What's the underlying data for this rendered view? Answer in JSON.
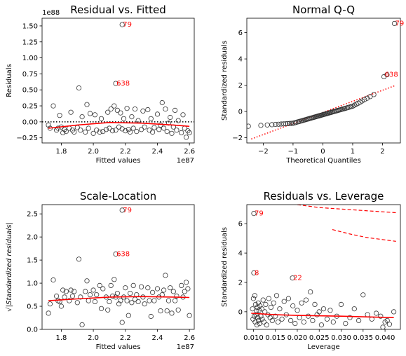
{
  "chart_data": [
    {
      "type": "scatter",
      "title": "Residual vs. Fitted",
      "xlabel": "Fitted values",
      "ylabel": "Residuals",
      "x_offset_text": "1e87",
      "y_offset_text": "1e88",
      "xlim": [
        1.68,
        2.63
      ],
      "ylim": [
        -0.33,
        1.62
      ],
      "xticks": [
        1.8,
        2.0,
        2.2,
        2.4,
        2.6
      ],
      "xtick_labels": [
        "1.8",
        "2.0",
        "2.2",
        "2.4",
        "2.6"
      ],
      "yticks": [
        -0.25,
        0.0,
        0.25,
        0.5,
        0.75,
        1.0,
        1.25,
        1.5
      ],
      "ytick_labels": [
        "−0.25",
        "0.00",
        "0.25",
        "0.50",
        "0.75",
        "1.00",
        "1.25",
        "1.50"
      ],
      "reference_line": {
        "y": 0,
        "style": "dotted",
        "color": "#000000"
      },
      "lowess": {
        "color": "#ff0000",
        "x": [
          1.72,
          1.9,
          2.1,
          2.3,
          2.5,
          2.6
        ],
        "y": [
          -0.1,
          -0.05,
          -0.01,
          -0.02,
          -0.05,
          -0.07
        ]
      },
      "points": [
        [
          1.72,
          -0.05
        ],
        [
          1.73,
          -0.1
        ],
        [
          1.75,
          0.25
        ],
        [
          1.77,
          -0.13
        ],
        [
          1.78,
          -0.1
        ],
        [
          1.79,
          0.1
        ],
        [
          1.8,
          -0.08
        ],
        [
          1.81,
          -0.17
        ],
        [
          1.82,
          -0.12
        ],
        [
          1.83,
          -0.15
        ],
        [
          1.85,
          -0.1
        ],
        [
          1.86,
          0.15
        ],
        [
          1.87,
          -0.13
        ],
        [
          1.88,
          -0.16
        ],
        [
          1.9,
          -0.09
        ],
        [
          1.91,
          0.53
        ],
        [
          1.92,
          -0.13
        ],
        [
          1.93,
          0.08
        ],
        [
          1.95,
          -0.16
        ],
        [
          1.96,
          0.27
        ],
        [
          1.97,
          -0.1
        ],
        [
          1.98,
          0.13
        ],
        [
          2.0,
          -0.18
        ],
        [
          2.01,
          0.11
        ],
        [
          2.02,
          -0.13
        ],
        [
          2.04,
          -0.16
        ],
        [
          2.05,
          0.05
        ],
        [
          2.06,
          -0.15
        ],
        [
          2.08,
          -0.12
        ],
        [
          2.09,
          0.15
        ],
        [
          2.1,
          -0.1
        ],
        [
          2.11,
          0.2
        ],
        [
          2.12,
          -0.14
        ],
        [
          2.13,
          0.25
        ],
        [
          2.14,
          -0.13
        ],
        [
          2.15,
          0.18
        ],
        [
          2.16,
          -0.08
        ],
        [
          2.17,
          0.14
        ],
        [
          2.18,
          -0.11
        ],
        [
          2.19,
          0.05
        ],
        [
          2.2,
          -0.14
        ],
        [
          2.21,
          0.21
        ],
        [
          2.22,
          -0.12
        ],
        [
          2.23,
          -0.16
        ],
        [
          2.24,
          0.08
        ],
        [
          2.25,
          -0.1
        ],
        [
          2.26,
          0.2
        ],
        [
          2.27,
          -0.15
        ],
        [
          2.28,
          0.02
        ],
        [
          2.3,
          -0.12
        ],
        [
          2.31,
          0.17
        ],
        [
          2.32,
          -0.08
        ],
        [
          2.34,
          0.19
        ],
        [
          2.35,
          -0.13
        ],
        [
          2.36,
          0.05
        ],
        [
          2.37,
          -0.16
        ],
        [
          2.38,
          -0.09
        ],
        [
          2.4,
          0.12
        ],
        [
          2.41,
          -0.12
        ],
        [
          2.42,
          -0.05
        ],
        [
          2.43,
          0.3
        ],
        [
          2.44,
          -0.1
        ],
        [
          2.45,
          0.2
        ],
        [
          2.46,
          -0.15
        ],
        [
          2.47,
          -0.02
        ],
        [
          2.48,
          0.07
        ],
        [
          2.49,
          -0.18
        ],
        [
          2.5,
          -0.08
        ],
        [
          2.51,
          0.18
        ],
        [
          2.52,
          -0.13
        ],
        [
          2.53,
          0.02
        ],
        [
          2.55,
          -0.17
        ],
        [
          2.56,
          0.11
        ],
        [
          2.57,
          -0.1
        ],
        [
          2.58,
          -0.24
        ],
        [
          2.59,
          -0.14
        ],
        [
          2.6,
          -0.17
        ],
        [
          2.14,
          0.6
        ],
        [
          2.18,
          1.52
        ]
      ],
      "annotations": [
        {
          "text": "79",
          "x": 2.18,
          "y": 1.52
        },
        {
          "text": "638",
          "x": 2.14,
          "y": 0.6
        }
      ]
    },
    {
      "type": "scatter",
      "title": "Normal Q-Q",
      "xlabel": "Theoretical Quantiles",
      "ylabel": "Standardized residuals",
      "xlim": [
        -2.55,
        2.6
      ],
      "ylim": [
        -2.4,
        7.1
      ],
      "xticks": [
        -2,
        -1,
        0,
        1,
        2
      ],
      "xtick_labels": [
        "−2",
        "−1",
        "0",
        "1",
        "2"
      ],
      "yticks": [
        -2,
        0,
        2,
        4,
        6
      ],
      "ytick_labels": [
        "−2",
        "0",
        "2",
        "4",
        "6"
      ],
      "reference_line": {
        "x": [
          -2.4,
          2.4
        ],
        "y": [
          -2.1,
          1.95
        ],
        "style": "dotted",
        "color": "#ff0000"
      },
      "qq_range": {
        "x_start": -2.3,
        "x_end": 2.4,
        "n": 80
      },
      "annotations": [
        {
          "text": "79",
          "x": 2.4,
          "y": 6.7
        },
        {
          "text": "638",
          "x": 2.05,
          "y": 2.8
        }
      ]
    },
    {
      "type": "scatter",
      "title": "Scale-Location",
      "xlabel": "Fitted values",
      "ylabel": "√|Standardized residuals|",
      "x_offset_text": "1e87",
      "xlim": [
        1.68,
        2.63
      ],
      "ylim": [
        0.0,
        2.7
      ],
      "xticks": [
        1.8,
        2.0,
        2.2,
        2.4,
        2.6
      ],
      "xtick_labels": [
        "1.8",
        "2.0",
        "2.2",
        "2.4",
        "2.6"
      ],
      "yticks": [
        0.0,
        0.5,
        1.0,
        1.5,
        2.0,
        2.5
      ],
      "ytick_labels": [
        "0.0",
        "0.5",
        "1.0",
        "1.5",
        "2.0",
        "2.5"
      ],
      "lowess": {
        "color": "#ff0000",
        "x": [
          1.72,
          1.9,
          2.1,
          2.3,
          2.5,
          2.6
        ],
        "y": [
          0.62,
          0.66,
          0.7,
          0.71,
          0.7,
          0.69
        ]
      },
      "points": [
        [
          1.72,
          0.35
        ],
        [
          1.73,
          0.55
        ],
        [
          1.75,
          1.07
        ],
        [
          1.77,
          0.72
        ],
        [
          1.78,
          0.62
        ],
        [
          1.79,
          0.6
        ],
        [
          1.8,
          0.5
        ],
        [
          1.81,
          0.85
        ],
        [
          1.82,
          0.7
        ],
        [
          1.83,
          0.82
        ],
        [
          1.85,
          0.62
        ],
        [
          1.86,
          0.85
        ],
        [
          1.87,
          0.72
        ],
        [
          1.88,
          0.82
        ],
        [
          1.9,
          0.58
        ],
        [
          1.91,
          1.52
        ],
        [
          1.92,
          0.7
        ],
        [
          1.93,
          0.1
        ],
        [
          1.95,
          0.82
        ],
        [
          1.96,
          1.05
        ],
        [
          1.97,
          0.62
        ],
        [
          1.98,
          0.75
        ],
        [
          2.0,
          0.85
        ],
        [
          2.01,
          0.6
        ],
        [
          2.02,
          0.75
        ],
        [
          2.04,
          0.95
        ],
        [
          2.05,
          0.45
        ],
        [
          2.06,
          0.88
        ],
        [
          2.08,
          0.7
        ],
        [
          2.09,
          0.42
        ],
        [
          2.1,
          0.6
        ],
        [
          2.11,
          0.95
        ],
        [
          2.12,
          0.72
        ],
        [
          2.13,
          1.08
        ],
        [
          2.14,
          0.7
        ],
        [
          2.15,
          0.78
        ],
        [
          2.16,
          0.55
        ],
        [
          2.17,
          0.62
        ],
        [
          2.18,
          0.15
        ],
        [
          2.19,
          0.7
        ],
        [
          2.2,
          0.9
        ],
        [
          2.21,
          0.62
        ],
        [
          2.22,
          0.3
        ],
        [
          2.23,
          0.78
        ],
        [
          2.24,
          0.58
        ],
        [
          2.25,
          0.95
        ],
        [
          2.26,
          0.65
        ],
        [
          2.27,
          0.75
        ],
        [
          2.28,
          0.6
        ],
        [
          2.3,
          0.92
        ],
        [
          2.31,
          0.7
        ],
        [
          2.32,
          0.55
        ],
        [
          2.34,
          0.9
        ],
        [
          2.35,
          0.62
        ],
        [
          2.36,
          0.28
        ],
        [
          2.37,
          0.8
        ],
        [
          2.38,
          0.62
        ],
        [
          2.4,
          0.88
        ],
        [
          2.41,
          0.7
        ],
        [
          2.42,
          0.4
        ],
        [
          2.43,
          0.75
        ],
        [
          2.44,
          0.85
        ],
        [
          2.45,
          1.17
        ],
        [
          2.46,
          0.4
        ],
        [
          2.47,
          0.62
        ],
        [
          2.48,
          0.9
        ],
        [
          2.49,
          0.35
        ],
        [
          2.5,
          0.82
        ],
        [
          2.51,
          0.62
        ],
        [
          2.52,
          0.72
        ],
        [
          2.53,
          0.42
        ],
        [
          2.55,
          0.95
        ],
        [
          2.56,
          0.7
        ],
        [
          2.57,
          0.82
        ],
        [
          2.58,
          1.02
        ],
        [
          2.59,
          0.88
        ],
        [
          2.6,
          0.3
        ],
        [
          2.14,
          1.63
        ],
        [
          2.18,
          2.58
        ]
      ],
      "annotations": [
        {
          "text": "79",
          "x": 2.18,
          "y": 2.58
        },
        {
          "text": "638",
          "x": 2.14,
          "y": 1.63
        }
      ]
    },
    {
      "type": "scatter",
      "title": "Residuals vs. Leverage",
      "xlabel": "Leverage",
      "ylabel": "Standardized residuals",
      "xlim": [
        0.0085,
        0.0435
      ],
      "ylim": [
        -1.2,
        7.3
      ],
      "xticks": [
        0.01,
        0.015,
        0.02,
        0.025,
        0.03,
        0.035,
        0.04
      ],
      "xtick_labels": [
        "0.010",
        "0.015",
        "0.020",
        "0.025",
        "0.030",
        "0.035",
        "0.040"
      ],
      "yticks": [
        0,
        2,
        4,
        6
      ],
      "ytick_labels": [
        "0",
        "2",
        "4",
        "6"
      ],
      "lowess": {
        "color": "#ff0000",
        "x": [
          0.0095,
          0.015,
          0.02,
          0.03,
          0.042
        ],
        "y": [
          -0.1,
          -0.2,
          -0.25,
          -0.3,
          -0.4
        ]
      },
      "cooks": [
        {
          "x": [
            0.02,
            0.025,
            0.03,
            0.035,
            0.0425
          ],
          "y": [
            7.3,
            7.1,
            7.0,
            6.9,
            6.75
          ]
        },
        {
          "x": [
            0.028,
            0.032,
            0.036,
            0.04,
            0.0425
          ],
          "y": [
            5.6,
            5.3,
            5.05,
            4.9,
            4.8
          ]
        }
      ],
      "points": [
        [
          0.0101,
          6.7
        ],
        [
          0.0101,
          2.65
        ],
        [
          0.0189,
          2.3
        ],
        [
          0.0098,
          0.2
        ],
        [
          0.0099,
          -0.5
        ],
        [
          0.01,
          0.9
        ],
        [
          0.0102,
          -0.3
        ],
        [
          0.0103,
          1.1
        ],
        [
          0.0104,
          -0.7
        ],
        [
          0.0105,
          0.5
        ],
        [
          0.0106,
          -0.2
        ],
        [
          0.0107,
          0.05
        ],
        [
          0.0108,
          -0.9
        ],
        [
          0.0109,
          0.3
        ],
        [
          0.011,
          -0.4
        ],
        [
          0.0111,
          0.6
        ],
        [
          0.0112,
          -0.6
        ],
        [
          0.0113,
          0.1
        ],
        [
          0.0114,
          -0.8
        ],
        [
          0.0115,
          0.4
        ],
        [
          0.0117,
          -0.3
        ],
        [
          0.0119,
          0.2
        ],
        [
          0.012,
          -0.5
        ],
        [
          0.0122,
          0.8
        ],
        [
          0.0124,
          -0.7
        ],
        [
          0.0126,
          0.0
        ],
        [
          0.0128,
          0.5
        ],
        [
          0.013,
          -0.9
        ],
        [
          0.0133,
          -0.2
        ],
        [
          0.0135,
          0.9
        ],
        [
          0.0138,
          -0.4
        ],
        [
          0.014,
          0.3
        ],
        [
          0.0143,
          -0.6
        ],
        [
          0.0146,
          0.6
        ],
        [
          0.015,
          -0.3
        ],
        [
          0.0153,
          1.1
        ],
        [
          0.0156,
          -0.7
        ],
        [
          0.016,
          0.2
        ],
        [
          0.0165,
          -0.5
        ],
        [
          0.017,
          0.7
        ],
        [
          0.0175,
          -0.2
        ],
        [
          0.018,
          0.9
        ],
        [
          0.0185,
          -0.6
        ],
        [
          0.019,
          0.4
        ],
        [
          0.0195,
          -0.8
        ],
        [
          0.02,
          0.1
        ],
        [
          0.0205,
          -0.4
        ],
        [
          0.021,
          0.6
        ],
        [
          0.0215,
          -0.7
        ],
        [
          0.022,
          0.8
        ],
        [
          0.0225,
          -0.3
        ],
        [
          0.023,
          1.35
        ],
        [
          0.0235,
          -0.6
        ],
        [
          0.024,
          0.5
        ],
        [
          0.0245,
          -0.2
        ],
        [
          0.025,
          0.0
        ],
        [
          0.0255,
          -0.9
        ],
        [
          0.026,
          0.2
        ],
        [
          0.0268,
          -0.5
        ],
        [
          0.0275,
          0.1
        ],
        [
          0.0282,
          -0.7
        ],
        [
          0.029,
          -0.3
        ],
        [
          0.03,
          0.5
        ],
        [
          0.031,
          -0.8
        ],
        [
          0.032,
          -0.4
        ],
        [
          0.033,
          0.2
        ],
        [
          0.034,
          -0.6
        ],
        [
          0.035,
          1.15
        ],
        [
          0.036,
          -0.2
        ],
        [
          0.037,
          -0.5
        ],
        [
          0.038,
          -0.1
        ],
        [
          0.039,
          -0.3
        ],
        [
          0.04,
          -0.7
        ],
        [
          0.0405,
          -0.6
        ],
        [
          0.041,
          -0.85
        ],
        [
          0.042,
          0.0
        ],
        [
          0.0395,
          -1.05
        ]
      ],
      "annotations": [
        {
          "text": "79",
          "x": 0.0101,
          "y": 6.7
        },
        {
          "text": "8",
          "x": 0.0101,
          "y": 2.65
        },
        {
          "text": "22",
          "x": 0.0189,
          "y": 2.3
        }
      ]
    }
  ]
}
